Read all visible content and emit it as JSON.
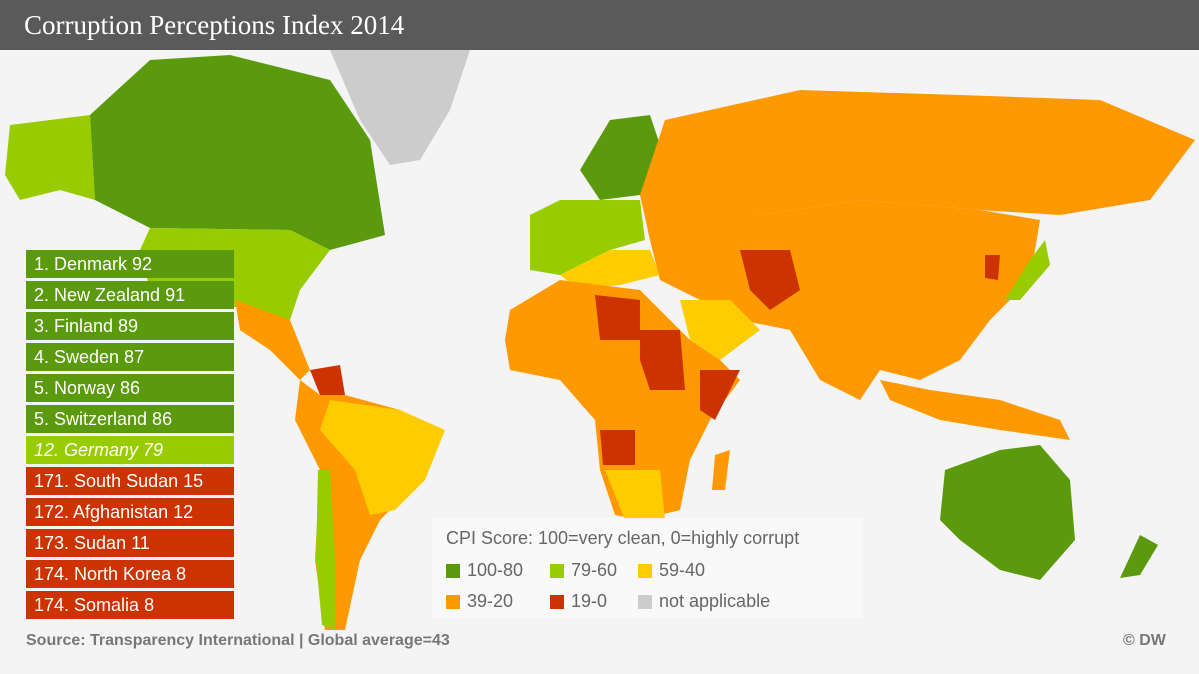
{
  "title": "Corruption Perceptions Index 2014",
  "colors": {
    "c100_80": "#5b9a0c",
    "c79_60": "#99cc00",
    "c59_40": "#ffcc00",
    "c39_20": "#ff9900",
    "c19_0": "#cc3300",
    "na": "#cccccc"
  },
  "ranking": [
    {
      "text": "1. Denmark 92",
      "band": "100-80"
    },
    {
      "text": "2. New Zealand 91",
      "band": "100-80"
    },
    {
      "text": "3. Finland 89",
      "band": "100-80"
    },
    {
      "text": "4. Sweden 87",
      "band": "100-80"
    },
    {
      "text": "5. Norway 86",
      "band": "100-80"
    },
    {
      "text": "5. Switzerland 86",
      "band": "100-80"
    },
    {
      "text": "12. Germany 79",
      "band": "79-60"
    },
    {
      "text": "171. South Sudan 15",
      "band": "19-0"
    },
    {
      "text": "172. Afghanistan 12",
      "band": "19-0"
    },
    {
      "text": "173. Sudan 11",
      "band": "19-0"
    },
    {
      "text": "174. North Korea 8",
      "band": "19-0"
    },
    {
      "text": "174. Somalia 8",
      "band": "19-0"
    }
  ],
  "legend": {
    "title": "CPI Score: 100=very clean, 0=highly corrupt",
    "items": [
      "100-80",
      "79-60",
      "59-40",
      "39-20",
      "19-0",
      "not applicable"
    ]
  },
  "source": "Source: Transparency International | Global average=43",
  "credit": "© DW"
}
